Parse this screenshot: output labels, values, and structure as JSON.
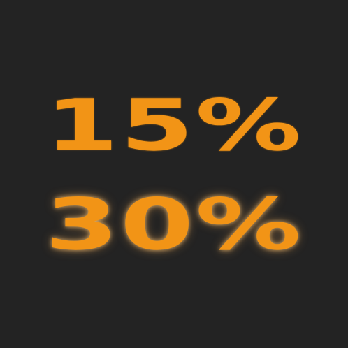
{
  "lines": [
    {
      "text": "15%"
    },
    {
      "text": "30%"
    }
  ],
  "colors": {
    "background": "#232323",
    "text": "#f29416"
  }
}
